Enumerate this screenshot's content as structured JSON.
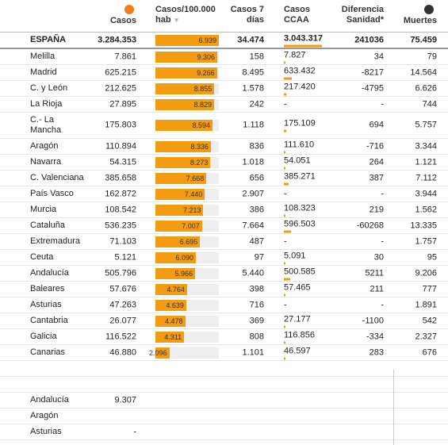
{
  "table": {
    "columns": [
      "Casos",
      "Casos/100.000 hab",
      "Casos 7 días",
      "Casos CCAA",
      "Diferencia Sanidad*",
      "Muertes"
    ],
    "total": [
      "ESPAÑA",
      "3.284.353",
      {
        "value": 6939,
        "label": "6.939"
      },
      "34.474",
      {
        "value": 3043317,
        "label": "3.043.317"
      },
      "241036",
      "75.459"
    ],
    "rows": [
      [
        "Melilla",
        "7.861",
        {
          "value": 9306,
          "label": "9.306"
        },
        "158",
        {
          "value": 7827,
          "label": "7.827"
        },
        "34",
        "79"
      ],
      [
        "Madrid",
        "625.215",
        {
          "value": 9266,
          "label": "9.266"
        },
        "8.495",
        {
          "value": 633432,
          "label": "633.432"
        },
        "-8217",
        "14.564"
      ],
      [
        "C. y León",
        "212.625",
        {
          "value": 8855,
          "label": "8.855"
        },
        "1.578",
        {
          "value": 217420,
          "label": "217.420"
        },
        "-4795",
        "6.626"
      ],
      [
        "La Rioja",
        "27.895",
        {
          "value": 8829,
          "label": "8.829"
        },
        "242",
        "-",
        "-",
        "744"
      ],
      [
        "C.- La Mancha",
        "175.803",
        {
          "value": 8594,
          "label": "8.594"
        },
        "1.118",
        {
          "value": 175109,
          "label": "175.109"
        },
        "694",
        "5.757"
      ],
      [
        "Aragón",
        "110.894",
        {
          "value": 8336,
          "label": "8.336"
        },
        "836",
        {
          "value": 111610,
          "label": "111.610"
        },
        "-716",
        "3.344"
      ],
      [
        "Navarra",
        "54.315",
        {
          "value": 8273,
          "label": "8.273"
        },
        "1.018",
        {
          "value": 54051,
          "label": "54.051"
        },
        "264",
        "1.121"
      ],
      [
        "C. Valenciana",
        "385.658",
        {
          "value": 7668,
          "label": "7.668"
        },
        "656",
        {
          "value": 385271,
          "label": "385.271"
        },
        "387",
        "7.112"
      ],
      [
        "País Vasco",
        "162.872",
        {
          "value": 7440,
          "label": "7.440"
        },
        "2.907",
        "-",
        "-",
        "3.944"
      ],
      [
        "Murcia",
        "108.542",
        {
          "value": 7213,
          "label": "7.213"
        },
        "386",
        {
          "value": 108323,
          "label": "108.323"
        },
        "219",
        "1.562"
      ],
      [
        "Cataluña",
        "536.235",
        {
          "value": 7007,
          "label": "7.007"
        },
        "7.664",
        {
          "value": 596503,
          "label": "596.503"
        },
        "-60268",
        "13.335"
      ],
      [
        "Extremadura",
        "71.103",
        {
          "value": 6695,
          "label": "6.695"
        },
        "487",
        "-",
        "-",
        "1.757"
      ],
      [
        "Ceuta",
        "5.121",
        {
          "value": 6090,
          "label": "6.090"
        },
        "97",
        {
          "value": 5091,
          "label": "5.091"
        },
        "30",
        "95"
      ],
      [
        "Andalucía",
        "505.796",
        {
          "value": 5966,
          "label": "5.966"
        },
        "5.440",
        {
          "value": 500585,
          "label": "500.585"
        },
        "5211",
        "9.206"
      ],
      [
        "Baleares",
        "57.676",
        {
          "value": 4764,
          "label": "4.764"
        },
        "398",
        {
          "value": 57465,
          "label": "57.465"
        },
        "211",
        "777"
      ],
      [
        "Asturias",
        "47.263",
        {
          "value": 4639,
          "label": "4.639"
        },
        "716",
        "-",
        "-",
        "1.891"
      ],
      [
        "Cantabria",
        "26.077",
        {
          "value": 4478,
          "label": "4.478"
        },
        "369",
        {
          "value": 27177,
          "label": "27.177"
        },
        "-1100",
        "542"
      ],
      [
        "Galicia",
        "116.522",
        {
          "value": 4311,
          "label": "4.311"
        },
        "808",
        {
          "value": 116856,
          "label": "116.856"
        },
        "-334",
        "2.327"
      ],
      [
        "Canarias",
        "46.880",
        {
          "value": 2096,
          "label": "2.096"
        },
        "1.101",
        {
          "value": 46597,
          "label": "46.597"
        },
        "283",
        "676"
      ]
    ]
  },
  "extra": {
    "rows": [
      [
        "Andalucía",
        "9.307"
      ],
      [
        "Aragón"
      ],
      [
        "Asturias",
        "-"
      ]
    ]
  }
}
